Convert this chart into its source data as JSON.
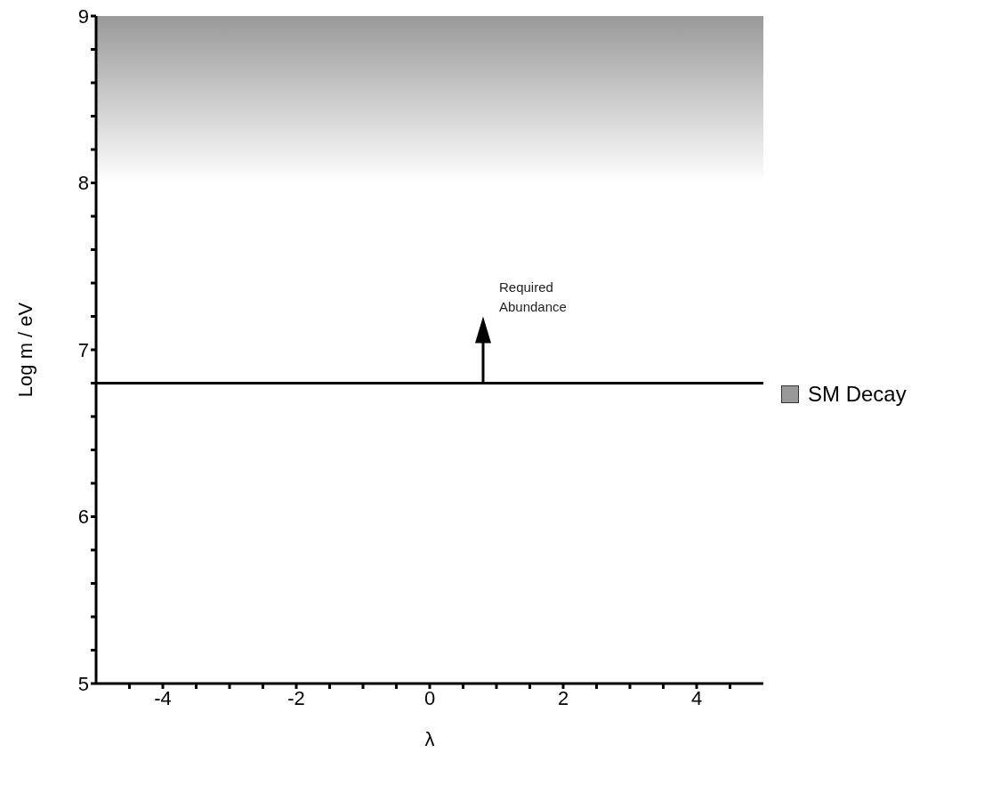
{
  "chart_data": {
    "type": "line",
    "xlabel": "λ",
    "ylabel": "Log m / eV",
    "xlim": [
      -5,
      5
    ],
    "ylim": [
      5,
      9
    ],
    "xticks": [
      {
        "value": -4.5,
        "label": null
      },
      -4,
      {
        "value": -3.5,
        "label": null
      },
      {
        "value": -3,
        "label": null
      },
      {
        "value": -2.5,
        "label": null
      },
      -2,
      {
        "value": -1.5,
        "label": null
      },
      {
        "value": -1,
        "label": null
      },
      {
        "value": -0.5,
        "label": null
      },
      0,
      {
        "value": 0.5,
        "label": null
      },
      {
        "value": 1,
        "label": null
      },
      {
        "value": 1.5,
        "label": null
      },
      2,
      {
        "value": 2.5,
        "label": null
      },
      {
        "value": 3,
        "label": null
      },
      {
        "value": 3.5,
        "label": null
      },
      4,
      {
        "value": 4.5,
        "label": null
      }
    ],
    "yticks": [
      5,
      {
        "value": 5.2,
        "label": null
      },
      {
        "value": 5.4,
        "label": null
      },
      {
        "value": 5.6,
        "label": null
      },
      {
        "value": 5.8,
        "label": null
      },
      6,
      {
        "value": 6.2,
        "label": null
      },
      {
        "value": 6.4,
        "label": null
      },
      {
        "value": 6.6,
        "label": null
      },
      {
        "value": 6.8,
        "label": null
      },
      7,
      {
        "value": 7.2,
        "label": null
      },
      {
        "value": 7.4,
        "label": null
      },
      {
        "value": 7.6,
        "label": null
      },
      {
        "value": 7.8,
        "label": null
      },
      8,
      {
        "value": 8.2,
        "label": null
      },
      {
        "value": 8.4,
        "label": null
      },
      {
        "value": 8.6,
        "label": null
      },
      {
        "value": 8.8,
        "label": null
      },
      9
    ],
    "ref_lines": [
      {
        "axis": "y",
        "value": 6.8,
        "color": "#000000"
      }
    ],
    "bands": [
      {
        "axis": "y",
        "from": 8,
        "to": 9,
        "label": "SM Decay",
        "color": "#999999"
      }
    ],
    "annotations": [
      "Required Abundance"
    ],
    "legend": "right"
  }
}
